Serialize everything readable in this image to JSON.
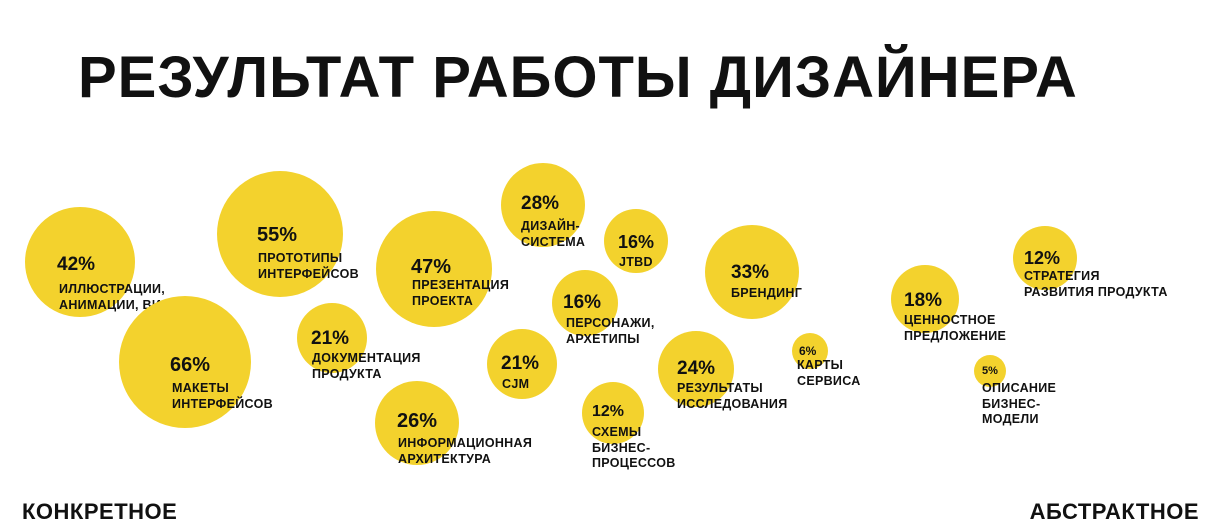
{
  "title": "РЕЗУЛЬТАТ РАБОТЫ ДИЗАЙНЕРА",
  "colors": {
    "bubble": "#F3D22D",
    "text": "#111111"
  },
  "chart_data": {
    "type": "bubble",
    "title": "РЕЗУЛЬТАТ РАБОТЫ ДИЗАЙНЕРА",
    "x_axis": {
      "left_label": "КОНКРЕТНОЕ",
      "right_label": "АБСТРАКТНОЕ"
    },
    "items": [
      {
        "id": "illustrations",
        "value": 42,
        "value_label": "42%",
        "label": "ИЛЛЮСТРАЦИИ,\nАНИМАЦИИ, ВИДЕО"
      },
      {
        "id": "mockups",
        "value": 66,
        "value_label": "66%",
        "label": "МАКЕТЫ\nИНТЕРФЕЙСОВ"
      },
      {
        "id": "prototypes",
        "value": 55,
        "value_label": "55%",
        "label": "ПРОТОТИПЫ\nИНТЕРФЕЙСОВ"
      },
      {
        "id": "documentation",
        "value": 21,
        "value_label": "21%",
        "label": "ДОКУМЕНТАЦИЯ\nПРОДУКТА"
      },
      {
        "id": "presentation",
        "value": 47,
        "value_label": "47%",
        "label": "ПРЕЗЕНТАЦИЯ\nПРОЕКТА"
      },
      {
        "id": "info-arch",
        "value": 26,
        "value_label": "26%",
        "label": "ИНФОРМАЦИОННАЯ\nАРХИТЕКТУРА"
      },
      {
        "id": "design-system",
        "value": 28,
        "value_label": "28%",
        "label": "ДИЗАЙН-\nСИСТЕМА"
      },
      {
        "id": "cjm",
        "value": 21,
        "value_label": "21%",
        "label": "CJM"
      },
      {
        "id": "personas",
        "value": 16,
        "value_label": "16%",
        "label": "ПЕРСОНАЖИ,\nАРХЕТИПЫ"
      },
      {
        "id": "jtbd",
        "value": 16,
        "value_label": "16%",
        "label": "JTBD"
      },
      {
        "id": "business-process",
        "value": 12,
        "value_label": "12%",
        "label": "СХЕМЫ\nБИЗНЕС-\nПРОЦЕССОВ"
      },
      {
        "id": "research",
        "value": 24,
        "value_label": "24%",
        "label": "РЕЗУЛЬТАТЫ\nИССЛЕДОВАНИЯ"
      },
      {
        "id": "branding",
        "value": 33,
        "value_label": "33%",
        "label": "БРЕНДИНГ"
      },
      {
        "id": "service-map",
        "value": 6,
        "value_label": "6%",
        "label": "КАРТЫ\nСЕРВИСА"
      },
      {
        "id": "value-prop",
        "value": 18,
        "value_label": "18%",
        "label": "ЦЕННОСТНОЕ\nПРЕДЛОЖЕНИЕ"
      },
      {
        "id": "business-model",
        "value": 5,
        "value_label": "5%",
        "label": "ОПИСАНИЕ\nБИЗНЕС-\nМОДЕЛИ"
      },
      {
        "id": "product-strategy",
        "value": 12,
        "value_label": "12%",
        "label": "СТРАТЕГИЯ\nРАЗВИТИЯ ПРОДУКТА"
      }
    ]
  }
}
